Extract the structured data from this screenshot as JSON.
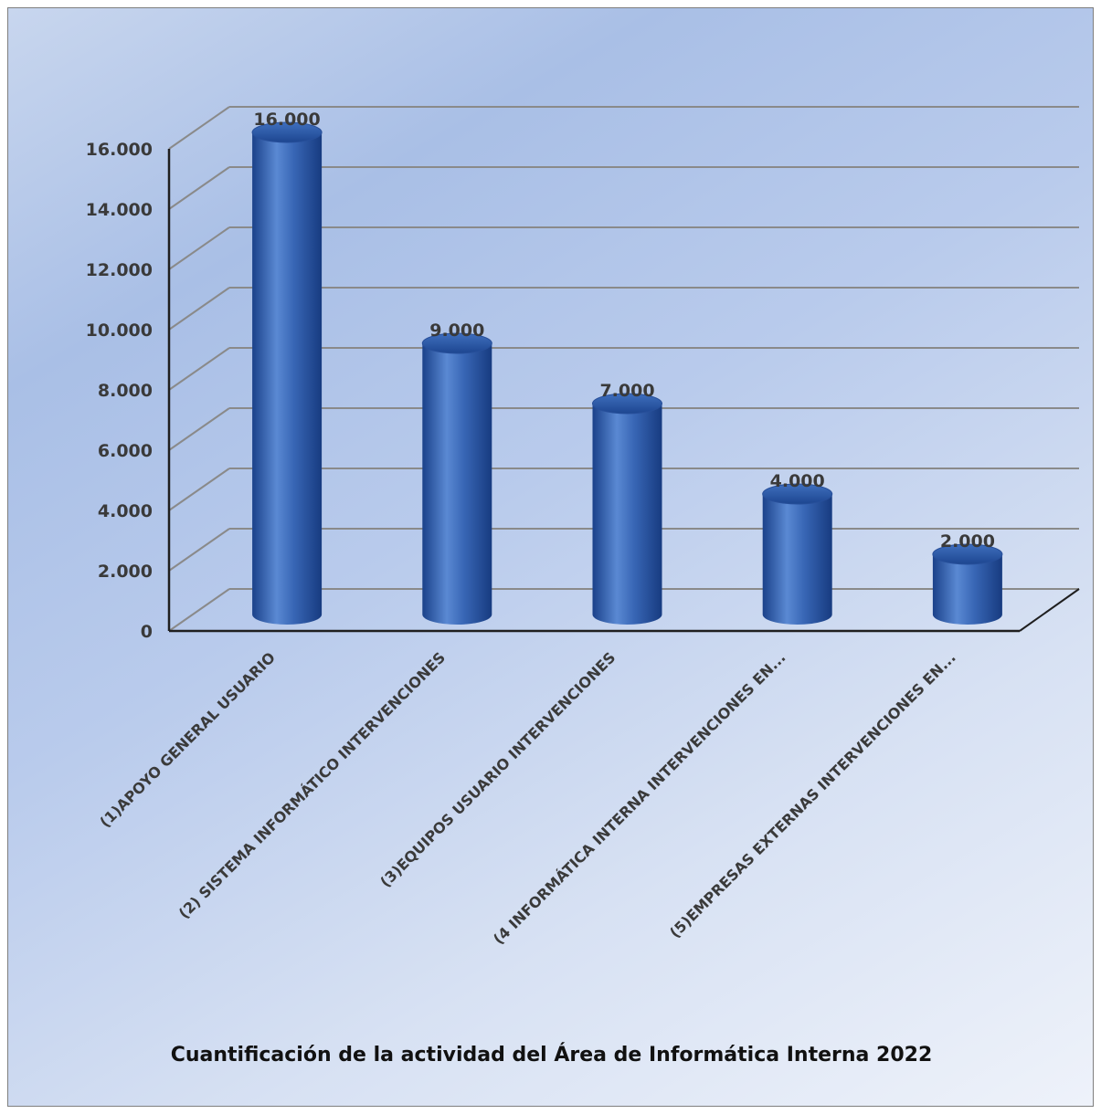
{
  "chart_data": {
    "type": "bar",
    "style": "3d-cylinder",
    "title": "Cuantificación de la actividad del Área de Informática Interna 2022",
    "categories": [
      "(1)APOYO GENERAL USUARIO",
      "(2) SISTEMA INFORMÁTICO INTERVENCIONES",
      "(3)EQUIPOS USUARIO INTERVENCIONES",
      "(4 INFORMÁTICA INTERNA INTERVENCIONES EN...",
      "(5)EMPRESAS EXTERNAS INTERVENCIONES EN..."
    ],
    "values": [
      16000,
      9000,
      7000,
      4000,
      2000
    ],
    "value_labels": [
      "16.000",
      "9.000",
      "7.000",
      "4.000",
      "2.000"
    ],
    "yticks": [
      0,
      2000,
      4000,
      6000,
      8000,
      10000,
      12000,
      14000,
      16000
    ],
    "ytick_labels": [
      "0",
      "2.000",
      "4.000",
      "6.000",
      "8.000",
      "10.000",
      "12.000",
      "14.000",
      "16.000"
    ],
    "ylim": [
      0,
      16000
    ],
    "grid": true,
    "legend": "none",
    "colors": {
      "bar": "#2f5fae",
      "bar_light": "#5b8ad2",
      "bar_dark": "#163f88",
      "grid": "#8a8a8a",
      "axis": "#1f1f1f"
    }
  }
}
